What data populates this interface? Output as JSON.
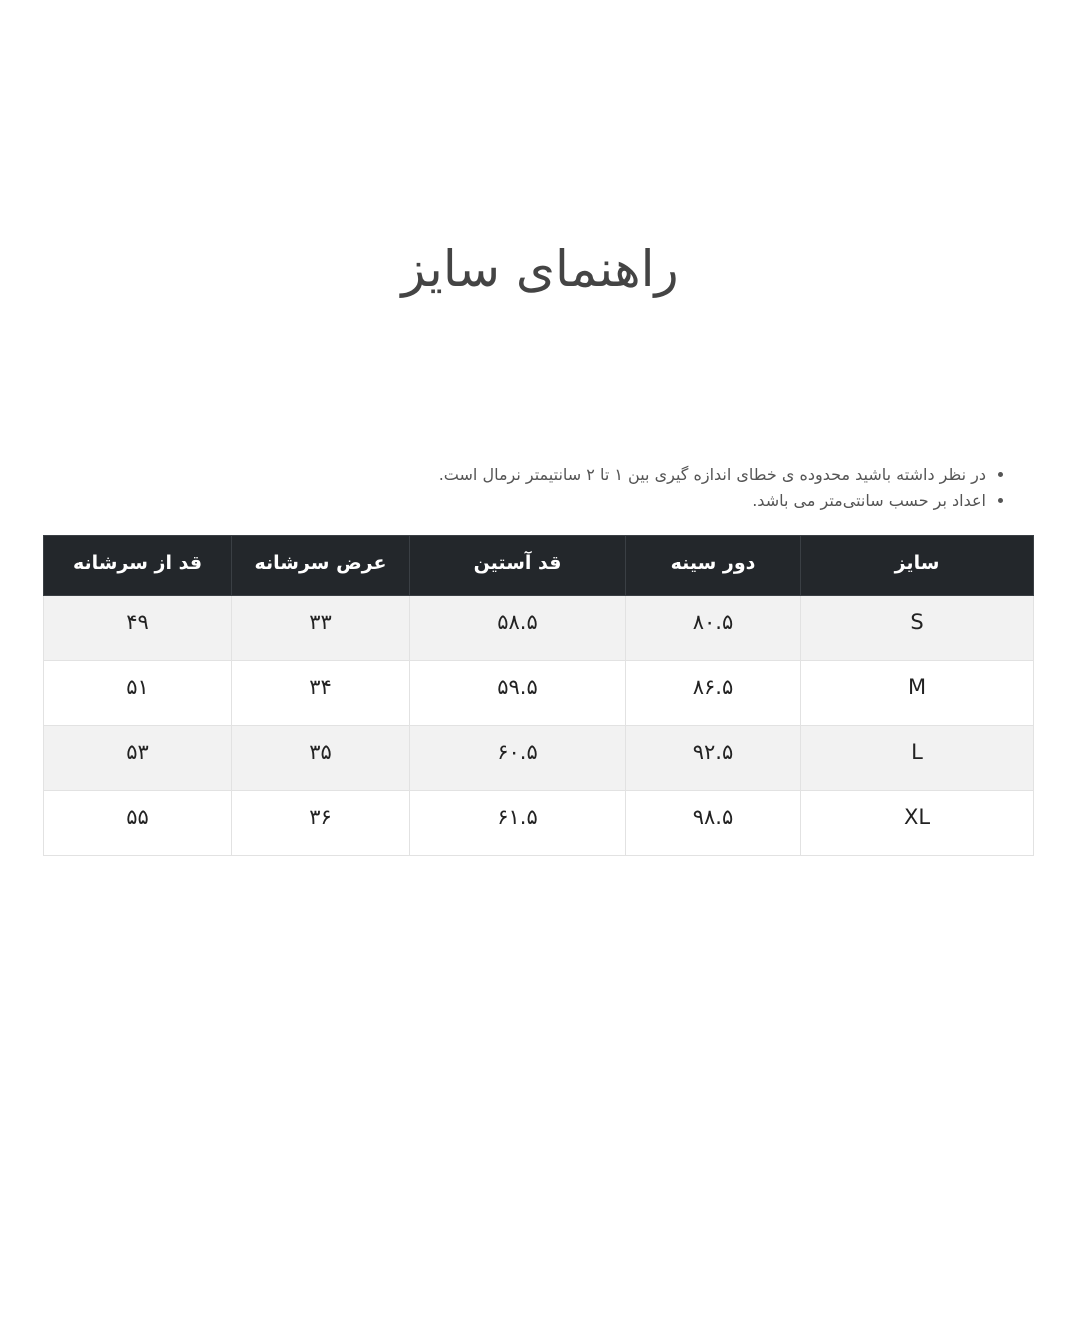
{
  "title": "راهنمای سایز",
  "notes": [
    "در نظر داشته باشید محدوده ی خطای اندازه گیری بین ۱ تا ۲ سانتیمتر نرمال است.",
    "اعداد بر حسب سانتی‌متر می باشد."
  ],
  "table": {
    "headers": [
      "سایز",
      "دور سینه",
      "قد آستین",
      "عرض سرشانه",
      "قد از سرشانه"
    ],
    "rows": [
      [
        "S",
        "۸۰.۵",
        "۵۸.۵",
        "۳۳",
        "۴۹"
      ],
      [
        "M",
        "۸۶.۵",
        "۵۹.۵",
        "۳۴",
        "۵۱"
      ],
      [
        "L",
        "۹۲.۵",
        "۶۰.۵",
        "۳۵",
        "۵۳"
      ],
      [
        "XL",
        "۹۸.۵",
        "۶۱.۵",
        "۳۶",
        "۵۵"
      ]
    ]
  },
  "colors": {
    "header_bg": "#23272b",
    "row_alt_bg": "#f2f2f2"
  }
}
